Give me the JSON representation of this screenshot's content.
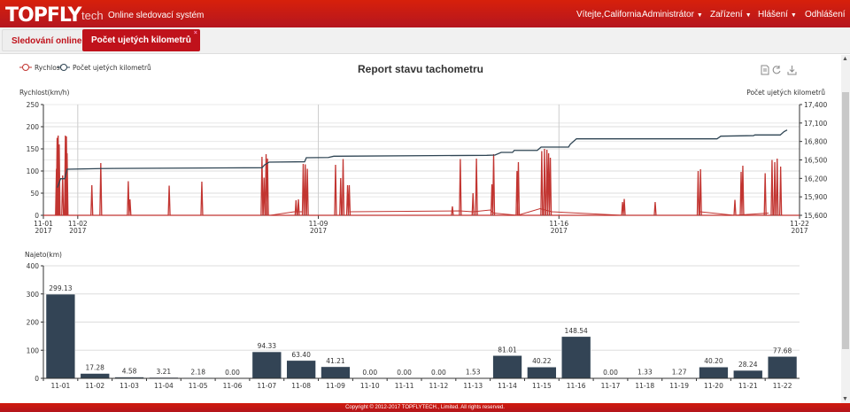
{
  "header": {
    "logo": "TOPFLY",
    "logo_suffix": "tech",
    "subtitle": "Online sledovací systém",
    "welcome": "Vítejte,California",
    "menu": [
      {
        "label": "Administrátor",
        "dropdown": true
      },
      {
        "label": "Zařízení",
        "dropdown": true
      },
      {
        "label": "Hlášení",
        "dropdown": true
      },
      {
        "label": "Odhlášení",
        "dropdown": false
      }
    ]
  },
  "tabs": [
    {
      "label": "Sledování online",
      "active": false
    },
    {
      "label": "Počet ujetých kilometrů",
      "active": true,
      "close": "×"
    }
  ],
  "toolbar": {
    "icons": [
      "data-view-icon",
      "refresh-icon",
      "download-icon"
    ]
  },
  "footer": "Copyright © 2012-2017 TOPFLYTECH., Limited. All rights reserved.",
  "colors": {
    "header": "#c8180f",
    "speed": "#c23531",
    "odometer": "#2f4554",
    "bar": "#334455"
  },
  "chart_data": [
    {
      "type": "line",
      "title": "Report stavu tachometru",
      "legend": [
        "Rychlost",
        "Počet ujetých kilometrů"
      ],
      "legend_position": "top-left",
      "ylabel": "Rychlost(km/h)",
      "ylim": [
        0,
        250
      ],
      "yticks": [
        0,
        50,
        100,
        150,
        200,
        250
      ],
      "y2label": "Počet ujetých kilometrů",
      "y2lim": [
        15600,
        17400
      ],
      "y2ticks": [
        "15,600",
        "15,900",
        "16,200",
        "16,500",
        "16,800",
        "17,100",
        "17,400"
      ],
      "xlim_days_from_11_01": [
        0,
        22
      ],
      "xticks": [
        {
          "day": 0,
          "label": "11-01",
          "year": "2017"
        },
        {
          "day": 1,
          "label": "11-02",
          "year": "2017"
        },
        {
          "day": 8,
          "label": "11-09",
          "year": "2017"
        },
        {
          "day": 15,
          "label": "11-16",
          "year": "2017"
        },
        {
          "day": 22,
          "label": "11-22",
          "year": "2017"
        }
      ],
      "series": [
        {
          "name": "Počet ujetých kilometrů",
          "axis": "right",
          "points": [
            [
              0.41,
              16051
            ],
            [
              0.5,
              16195
            ],
            [
              0.62,
              16195
            ],
            [
              0.69,
              16349
            ],
            [
              1.67,
              16360
            ],
            [
              6.36,
              16373
            ],
            [
              6.44,
              16421
            ],
            [
              6.57,
              16464
            ],
            [
              7.6,
              16470
            ],
            [
              7.65,
              16536
            ],
            [
              8.29,
              16540
            ],
            [
              8.45,
              16560
            ],
            [
              12.9,
              16575
            ],
            [
              13.14,
              16579
            ],
            [
              13.32,
              16622
            ],
            [
              13.65,
              16622
            ],
            [
              13.7,
              16655
            ],
            [
              14.37,
              16655
            ],
            [
              14.48,
              16709
            ],
            [
              15.28,
              16709
            ],
            [
              15.33,
              16755
            ],
            [
              15.51,
              16843
            ],
            [
              19.6,
              16843
            ],
            [
              19.71,
              16886
            ],
            [
              20.66,
              16895
            ],
            [
              20.7,
              16906
            ],
            [
              21.44,
              16906
            ],
            [
              21.55,
              16960
            ],
            [
              21.64,
              16987
            ]
          ]
        },
        {
          "name": "Rychlost",
          "axis": "left",
          "spikes": [
            [
              0.38,
              105
            ],
            [
              0.4,
              175
            ],
            [
              0.43,
              180
            ],
            [
              0.46,
              160
            ],
            [
              0.56,
              90
            ],
            [
              0.64,
              180
            ],
            [
              0.67,
              178
            ],
            [
              0.69,
              140
            ],
            [
              1.41,
              68
            ],
            [
              1.67,
              118
            ],
            [
              2.47,
              77
            ],
            [
              2.52,
              36
            ],
            [
              3.66,
              67
            ],
            [
              4.61,
              76
            ],
            [
              6.36,
              132
            ],
            [
              6.42,
              85
            ],
            [
              6.48,
              138
            ],
            [
              6.52,
              128
            ],
            [
              7.35,
              34
            ],
            [
              7.42,
              36
            ],
            [
              7.56,
              116
            ],
            [
              7.62,
              115
            ],
            [
              7.68,
              105
            ],
            [
              8.5,
              114
            ],
            [
              8.65,
              84
            ],
            [
              8.72,
              127
            ],
            [
              8.85,
              68
            ],
            [
              8.9,
              68
            ],
            [
              11.9,
              20
            ],
            [
              12.13,
              127
            ],
            [
              12.5,
              50
            ],
            [
              12.6,
              128
            ],
            [
              13.05,
              70
            ],
            [
              13.1,
              138
            ],
            [
              13.78,
              100
            ],
            [
              13.82,
              120
            ],
            [
              14.5,
              145
            ],
            [
              14.58,
              150
            ],
            [
              14.65,
              148
            ],
            [
              14.7,
              140
            ],
            [
              14.75,
              130
            ],
            [
              16.85,
              30
            ],
            [
              16.9,
              37
            ],
            [
              17.8,
              30
            ],
            [
              19.05,
              100
            ],
            [
              19.12,
              104
            ],
            [
              20.12,
              35
            ],
            [
              20.3,
              98
            ],
            [
              20.35,
              112
            ],
            [
              21.0,
              95
            ],
            [
              21.2,
              125
            ],
            [
              21.28,
              120
            ],
            [
              21.35,
              128
            ],
            [
              21.45,
              110
            ]
          ],
          "baseline_segments": [
            [
              [
                0.7,
                0
              ],
              [
                1.67,
                0
              ],
              [
                6.3,
                0
              ]
            ],
            [
              [
                6.6,
                0
              ],
              [
                7.3,
                8
              ],
              [
                7.55,
                8
              ]
            ],
            [
              [
                8.9,
                8
              ],
              [
                12.1,
                10
              ],
              [
                12.5,
                8
              ],
              [
                13.0,
                12
              ],
              [
                13.1,
                5
              ],
              [
                13.8,
                0
              ],
              [
                14.45,
                15
              ],
              [
                14.8,
                8
              ],
              [
                16.85,
                0
              ]
            ],
            [
              [
                19.1,
                8
              ],
              [
                20.1,
                0
              ],
              [
                21.1,
                5
              ]
            ]
          ]
        }
      ]
    },
    {
      "type": "bar",
      "ylabel": "Najeto(km)",
      "ylim": [
        0,
        400
      ],
      "yticks": [
        0,
        100,
        200,
        300,
        400
      ],
      "categories": [
        "11-01",
        "11-02",
        "11-03",
        "11-04",
        "11-05",
        "11-06",
        "11-07",
        "11-08",
        "11-09",
        "11-10",
        "11-11",
        "11-12",
        "11-13",
        "11-14",
        "11-15",
        "11-16",
        "11-17",
        "11-18",
        "11-19",
        "11-20",
        "11-21",
        "11-22"
      ],
      "values": [
        299.13,
        17.28,
        4.58,
        3.21,
        2.18,
        0.0,
        94.33,
        63.4,
        41.21,
        0.0,
        0.0,
        0.0,
        1.53,
        81.01,
        40.22,
        148.54,
        0.0,
        1.33,
        1.27,
        40.2,
        28.24,
        77.68
      ],
      "labels": [
        "299.13",
        "17.28",
        "4.58",
        "3.21",
        "2.18",
        "0.00",
        "94.33",
        "63.40",
        "41.21",
        "0.00",
        "0.00",
        "0.00",
        "1.53",
        "81.01",
        "40.22",
        "148.54",
        "0.00",
        "1.33",
        "1.27",
        "40.20",
        "28.24",
        "77.68"
      ]
    }
  ]
}
